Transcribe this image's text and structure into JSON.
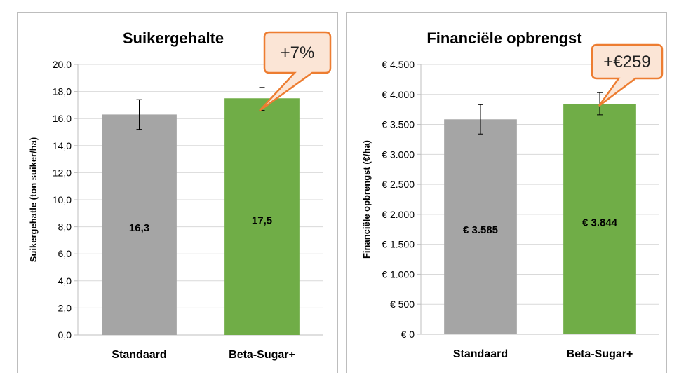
{
  "chart_data": [
    {
      "type": "bar",
      "title": "Suikergehalte",
      "ylabel": "Suikergehatle (ton suiker/ha)",
      "xlabel": "",
      "categories": [
        "Standaard",
        "Beta-Sugar+"
      ],
      "values": [
        16.3,
        17.5
      ],
      "value_labels": [
        "16,3",
        "17,5"
      ],
      "error_low": [
        15.2,
        16.6
      ],
      "error_high": [
        17.4,
        18.3
      ],
      "bar_colors": [
        "#a5a5a5",
        "#70ad47"
      ],
      "ylim": [
        0,
        20
      ],
      "yticks": [
        0,
        2,
        4,
        6,
        8,
        10,
        12,
        14,
        16,
        18,
        20
      ],
      "ytick_labels": [
        "0,0",
        "2,0",
        "4,0",
        "6,0",
        "8,0",
        "10,0",
        "12,0",
        "14,0",
        "16,0",
        "18,0",
        "20,0"
      ],
      "grid": true,
      "annotation": "+7%"
    },
    {
      "type": "bar",
      "title": "Financiële opbrengst",
      "ylabel": "Financiële opbrengst (€/ha)",
      "xlabel": "",
      "categories": [
        "Standaard",
        "Beta-Sugar+"
      ],
      "values": [
        3585,
        3844
      ],
      "value_labels": [
        "€ 3.585",
        "€ 3.844"
      ],
      "error_low": [
        3340,
        3660
      ],
      "error_high": [
        3830,
        4030
      ],
      "bar_colors": [
        "#a5a5a5",
        "#70ad47"
      ],
      "ylim": [
        0,
        4500
      ],
      "yticks": [
        0,
        500,
        1000,
        1500,
        2000,
        2500,
        3000,
        3500,
        4000,
        4500
      ],
      "ytick_labels": [
        "€ 0",
        "€ 500",
        "€ 1.000",
        "€ 1.500",
        "€ 2.000",
        "€ 2.500",
        "€ 3.000",
        "€ 3.500",
        "€ 4.000",
        "€ 4.500"
      ],
      "grid": true,
      "annotation": "+€259"
    }
  ],
  "colors": {
    "callout_fill": "#fbe5d6",
    "callout_border": "#ed7d31",
    "grid": "#d9d9d9",
    "axis": "#bfbfbf"
  }
}
